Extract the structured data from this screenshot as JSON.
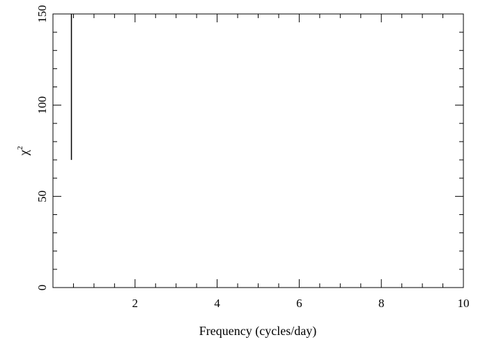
{
  "chart_data": {
    "type": "line",
    "title": "",
    "xlabel": "Frequency (cycles/day)",
    "ylabel_symbol": "χ",
    "ylabel_superscript": "2",
    "xlim": [
      0,
      10
    ],
    "ylim": [
      0,
      150
    ],
    "x_ticks_major": [
      2,
      4,
      6,
      8,
      10
    ],
    "x_ticks_minor_step": 0.5,
    "y_ticks_major": [
      0,
      50,
      100,
      150
    ],
    "y_ticks_minor_step": 10,
    "x_tick_labels": [
      "2",
      "4",
      "6",
      "8",
      "10"
    ],
    "y_tick_labels": [
      "0",
      "50",
      "100",
      "150"
    ],
    "grid": false,
    "legend": "none",
    "series": [
      {
        "x": [
          0.45,
          0.45
        ],
        "y": [
          70,
          150
        ]
      }
    ]
  }
}
